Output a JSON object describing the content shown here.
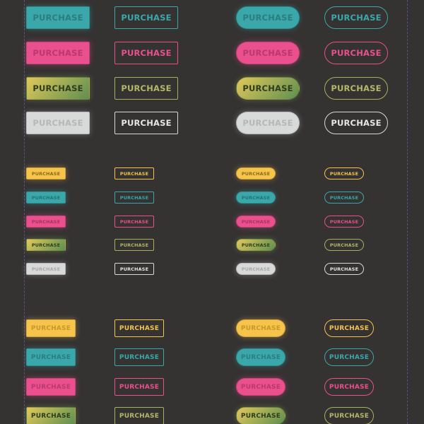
{
  "button_label": "PURCHASE",
  "colors": {
    "background": "#353232",
    "teal": "#3aa8aa",
    "pink": "#ea4f8e",
    "olive_gradient_start": "#e0c85a",
    "olive_gradient_end": "#5f8f50",
    "gray": "#d8d9d9",
    "yellow": "#f6c34b",
    "guide": "#6b58a8"
  },
  "groups": [
    {
      "name": "large",
      "rows": [
        "teal",
        "pink",
        "olive",
        "gray"
      ],
      "variants": [
        "solid-rect",
        "outline-rect",
        "solid-pill",
        "outline-pill"
      ]
    },
    {
      "name": "small",
      "rows": [
        "yellow",
        "teal",
        "pink",
        "olive",
        "gray"
      ],
      "variants": [
        "solid-rect",
        "outline-rect",
        "solid-pill",
        "outline-pill"
      ]
    },
    {
      "name": "medium",
      "rows": [
        "yellow",
        "teal",
        "pink",
        "olive"
      ],
      "variants": [
        "solid-rect",
        "outline-rect",
        "solid-pill",
        "outline-pill"
      ]
    }
  ]
}
